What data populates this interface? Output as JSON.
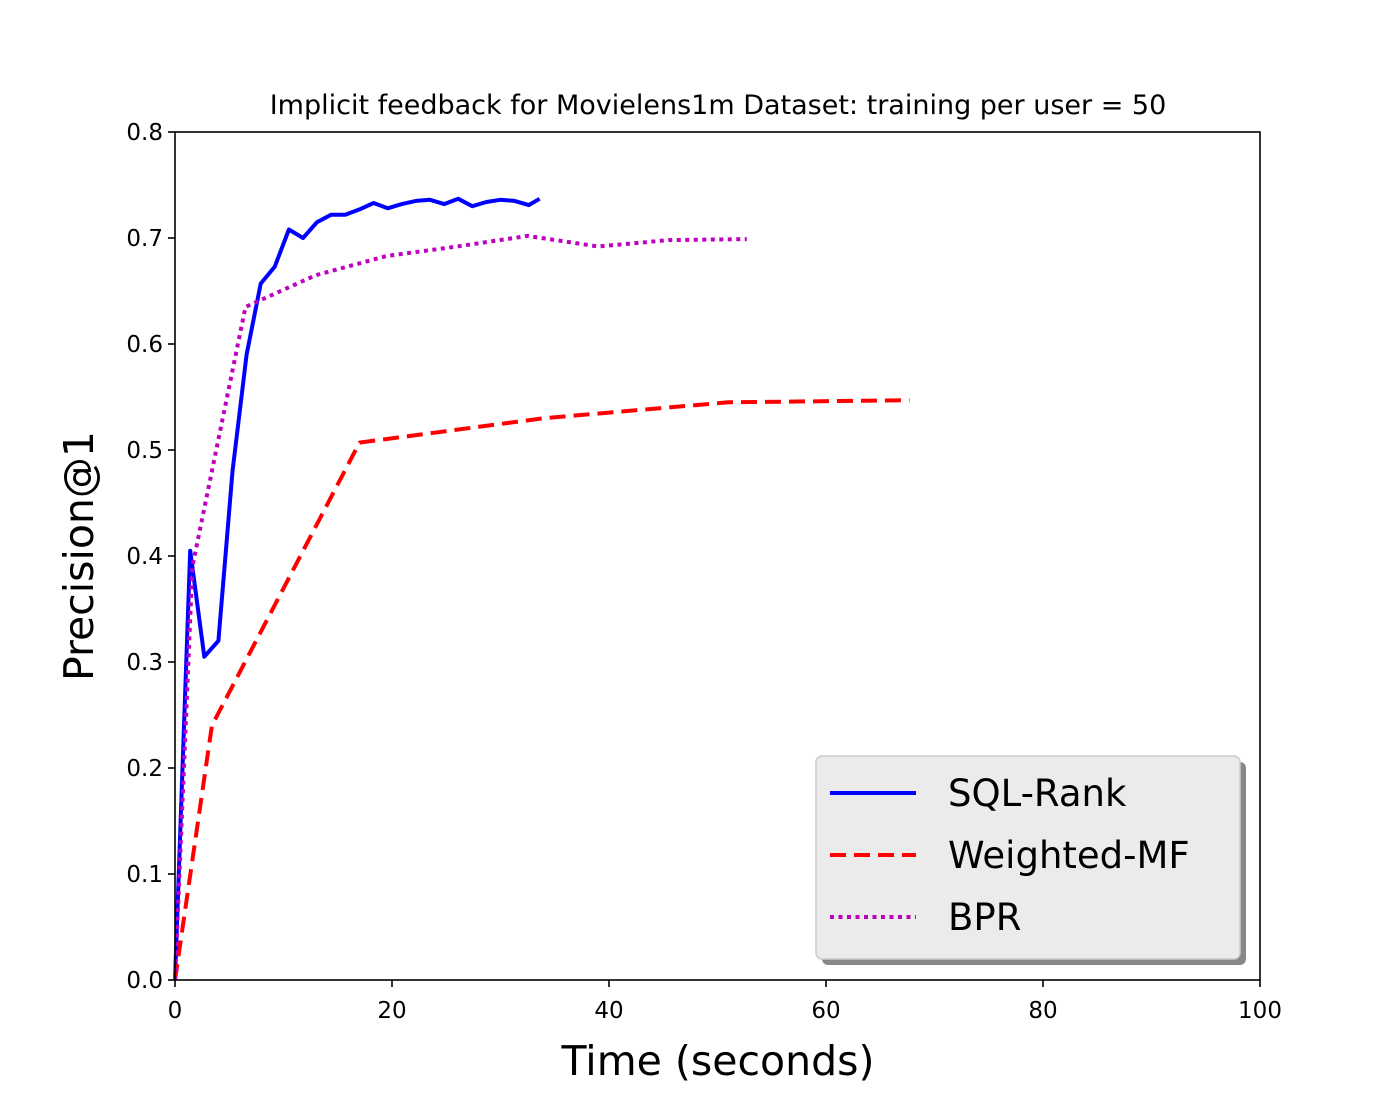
{
  "chart_data": {
    "type": "line",
    "title": "Implicit feedback for Movielens1m Dataset: training per user = 50",
    "xlabel": "Time (seconds)",
    "ylabel": "Precision@1",
    "xlim": [
      0,
      100
    ],
    "ylim": [
      0,
      0.8
    ],
    "xticks": [
      0,
      20,
      40,
      60,
      80,
      100
    ],
    "xtick_labels": [
      "0",
      "20",
      "40",
      "60",
      "80",
      "100"
    ],
    "yticks": [
      0.0,
      0.1,
      0.2,
      0.3,
      0.4,
      0.5,
      0.6,
      0.7,
      0.8
    ],
    "ytick_labels": [
      "0.0",
      "0.1",
      "0.2",
      "0.3",
      "0.4",
      "0.5",
      "0.6",
      "0.7",
      "0.8"
    ],
    "grid": false,
    "legend": "lower-right",
    "series": [
      {
        "name": "SQL-Rank",
        "color": "#0000ff",
        "style": "solid",
        "x": [
          0,
          1.4,
          2.7,
          4.0,
          5.3,
          6.6,
          7.9,
          9.2,
          10.5,
          11.8,
          13.1,
          14.4,
          15.7,
          17.0,
          18.3,
          19.6,
          20.9,
          22.2,
          23.5,
          24.8,
          26.1,
          27.4,
          28.7,
          30.0,
          31.3,
          32.6,
          33.6
        ],
        "y": [
          0.0,
          0.405,
          0.305,
          0.32,
          0.48,
          0.59,
          0.657,
          0.673,
          0.708,
          0.7,
          0.715,
          0.722,
          0.722,
          0.727,
          0.733,
          0.728,
          0.732,
          0.735,
          0.736,
          0.732,
          0.737,
          0.73,
          0.734,
          0.736,
          0.735,
          0.731,
          0.737
        ]
      },
      {
        "name": "Weighted-MF",
        "color": "#ff0000",
        "style": "dashed",
        "x": [
          0,
          3.4,
          17.0,
          34.0,
          51.0,
          67.7
        ],
        "y": [
          0.0,
          0.24,
          0.507,
          0.53,
          0.545,
          0.547
        ]
      },
      {
        "name": "BPR",
        "color": "#bf00bf",
        "style": "dotted",
        "x": [
          0,
          1.6,
          6.5,
          13.0,
          19.5,
          26.0,
          32.5,
          39.0,
          45.5,
          52.7
        ],
        "y": [
          0.0,
          0.39,
          0.635,
          0.665,
          0.683,
          0.692,
          0.702,
          0.692,
          0.698,
          0.699
        ]
      }
    ]
  }
}
